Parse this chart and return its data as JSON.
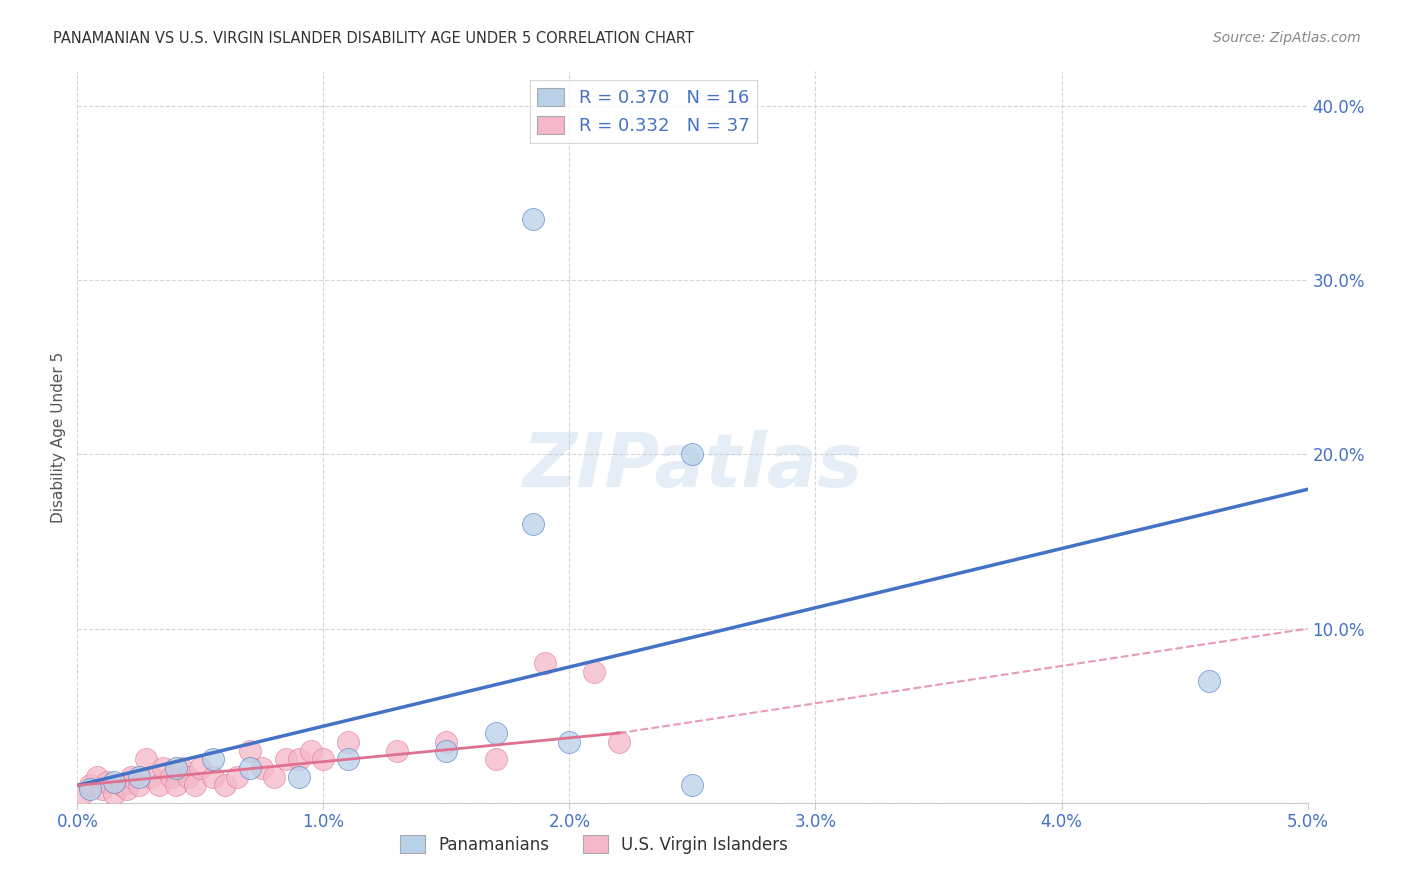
{
  "title": "PANAMANIAN VS U.S. VIRGIN ISLANDER DISABILITY AGE UNDER 5 CORRELATION CHART",
  "source": "Source: ZipAtlas.com",
  "xlabel_bottom": [
    "0.0%",
    "1.0%",
    "2.0%",
    "3.0%",
    "4.0%",
    "5.0%"
  ],
  "ylabel_left": "Disability Age Under 5",
  "xlim": [
    0.0,
    5.0
  ],
  "ylim": [
    0.0,
    42.0
  ],
  "blue_R": 0.37,
  "blue_N": 16,
  "pink_R": 0.332,
  "pink_N": 37,
  "blue_color": "#b8d0e8",
  "blue_line_color": "#4472c4",
  "pink_color": "#f4b8c8",
  "pink_line_color": "#e07090",
  "blue_scatter_x": [
    1.85,
    2.5,
    1.85,
    0.05,
    0.15,
    0.25,
    0.4,
    0.55,
    0.7,
    0.9,
    1.1,
    1.5,
    1.7,
    2.0,
    2.5,
    4.6
  ],
  "blue_scatter_y": [
    33.5,
    20.0,
    16.0,
    0.8,
    1.2,
    1.5,
    2.0,
    2.5,
    2.0,
    1.5,
    2.5,
    3.0,
    4.0,
    3.5,
    1.0,
    7.0
  ],
  "pink_scatter_x": [
    0.02,
    0.05,
    0.08,
    0.1,
    0.12,
    0.15,
    0.18,
    0.2,
    0.22,
    0.25,
    0.28,
    0.3,
    0.33,
    0.35,
    0.38,
    0.4,
    0.42,
    0.45,
    0.48,
    0.5,
    0.55,
    0.6,
    0.65,
    0.7,
    0.75,
    0.8,
    0.85,
    0.9,
    0.95,
    1.0,
    1.1,
    1.3,
    1.5,
    1.7,
    1.9,
    2.1,
    2.2
  ],
  "pink_scatter_y": [
    0.5,
    1.0,
    1.5,
    0.8,
    1.2,
    0.5,
    1.0,
    0.8,
    1.5,
    1.0,
    2.5,
    1.5,
    1.0,
    2.0,
    1.5,
    1.0,
    2.0,
    1.5,
    1.0,
    2.0,
    1.5,
    1.0,
    1.5,
    3.0,
    2.0,
    1.5,
    2.5,
    2.5,
    3.0,
    2.5,
    3.5,
    3.0,
    3.5,
    2.5,
    8.0,
    7.5,
    3.5
  ],
  "blue_line_x0": 0.0,
  "blue_line_y0": 1.0,
  "blue_line_x1": 5.0,
  "blue_line_y1": 18.0,
  "pink_solid_x0": 0.0,
  "pink_solid_y0": 1.0,
  "pink_solid_x1": 2.2,
  "pink_solid_y1": 4.0,
  "pink_dash_x0": 2.2,
  "pink_dash_y0": 4.0,
  "pink_dash_x1": 5.0,
  "pink_dash_y1": 10.0,
  "background_color": "#ffffff",
  "grid_color": "#cccccc",
  "title_color": "#333333",
  "source_color": "#888888",
  "axis_label_color": "#4472c4",
  "right_axis_color": "#4472c4",
  "legend_label1": "Panamanians",
  "legend_label2": "U.S. Virgin Islanders",
  "watermark": "ZIPatlas",
  "yticks": [
    0,
    10.0,
    20.0,
    30.0,
    40.0
  ],
  "ytick_labels": [
    "",
    "10.0%",
    "20.0%",
    "30.0%",
    "40.0%"
  ]
}
